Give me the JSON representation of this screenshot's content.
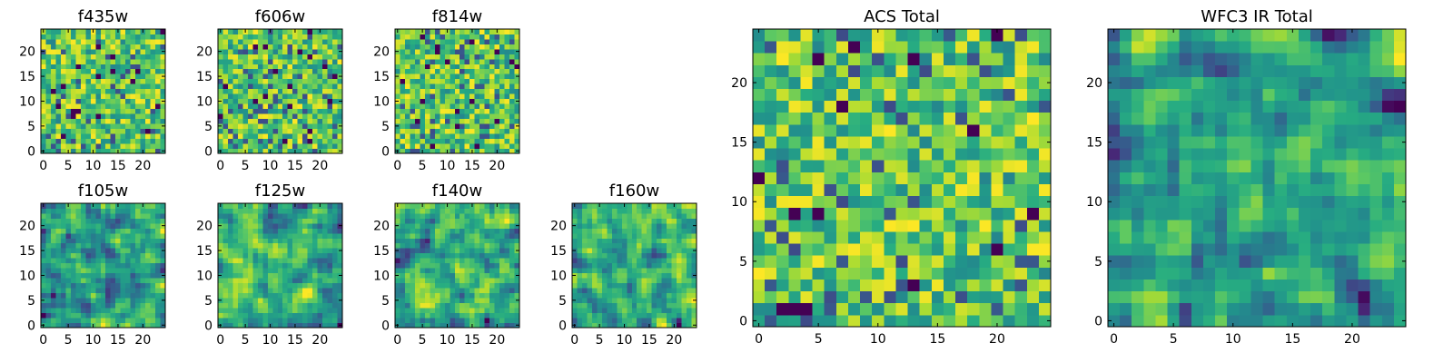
{
  "figure": {
    "description_colormap": "viridis",
    "colors": {
      "dark": "#440154",
      "mid": "#21918c",
      "bright": "#fde725"
    }
  },
  "chart_data": [
    {
      "type": "heatmap",
      "title": "f435w",
      "grid_size": 25,
      "xlim": [
        -0.5,
        24.5
      ],
      "ylim": [
        -0.5,
        24.5
      ],
      "x_ticks": [
        0,
        5,
        10,
        15,
        20
      ],
      "x_tick_labels": [
        "0",
        "5",
        "10",
        "15",
        "20"
      ],
      "y_ticks": [
        0,
        5,
        10,
        15,
        20
      ],
      "y_tick_labels": [
        "0",
        "5",
        "10",
        "15",
        "20"
      ],
      "pattern": "noise",
      "seed": 11
    },
    {
      "type": "heatmap",
      "title": "f606w",
      "grid_size": 25,
      "xlim": [
        -0.5,
        24.5
      ],
      "ylim": [
        -0.5,
        24.5
      ],
      "x_ticks": [
        0,
        5,
        10,
        15,
        20
      ],
      "x_tick_labels": [
        "0",
        "5",
        "10",
        "15",
        "20"
      ],
      "y_ticks": [
        0,
        5,
        10,
        15,
        20
      ],
      "y_tick_labels": [
        "0",
        "5",
        "10",
        "15",
        "20"
      ],
      "pattern": "noise",
      "seed": 23
    },
    {
      "type": "heatmap",
      "title": "f814w",
      "grid_size": 25,
      "xlim": [
        -0.5,
        24.5
      ],
      "ylim": [
        -0.5,
        24.5
      ],
      "x_ticks": [
        0,
        5,
        10,
        15,
        20
      ],
      "x_tick_labels": [
        "0",
        "5",
        "10",
        "15",
        "20"
      ],
      "y_ticks": [
        0,
        5,
        10,
        15,
        20
      ],
      "y_tick_labels": [
        "0",
        "5",
        "10",
        "15",
        "20"
      ],
      "pattern": "noise",
      "seed": 37
    },
    {
      "type": "heatmap",
      "title": "f105w",
      "grid_size": 25,
      "xlim": [
        -0.5,
        24.5
      ],
      "ylim": [
        -0.5,
        24.5
      ],
      "x_ticks": [
        0,
        5,
        10,
        15,
        20
      ],
      "x_tick_labels": [
        "0",
        "5",
        "10",
        "15",
        "20"
      ],
      "y_ticks": [
        0,
        5,
        10,
        15,
        20
      ],
      "y_tick_labels": [
        "0",
        "5",
        "10",
        "15",
        "20"
      ],
      "pattern": "smooth",
      "seed": 41
    },
    {
      "type": "heatmap",
      "title": "f125w",
      "grid_size": 25,
      "xlim": [
        -0.5,
        24.5
      ],
      "ylim": [
        -0.5,
        24.5
      ],
      "x_ticks": [
        0,
        5,
        10,
        15,
        20
      ],
      "x_tick_labels": [
        "0",
        "5",
        "10",
        "15",
        "20"
      ],
      "y_ticks": [
        0,
        5,
        10,
        15,
        20
      ],
      "y_tick_labels": [
        "0",
        "5",
        "10",
        "15",
        "20"
      ],
      "pattern": "smooth",
      "seed": 53
    },
    {
      "type": "heatmap",
      "title": "f140w",
      "grid_size": 25,
      "xlim": [
        -0.5,
        24.5
      ],
      "ylim": [
        -0.5,
        24.5
      ],
      "x_ticks": [
        0,
        5,
        10,
        15,
        20
      ],
      "x_tick_labels": [
        "0",
        "5",
        "10",
        "15",
        "20"
      ],
      "y_ticks": [
        0,
        5,
        10,
        15,
        20
      ],
      "y_tick_labels": [
        "0",
        "5",
        "10",
        "15",
        "20"
      ],
      "pattern": "smooth",
      "seed": 67
    },
    {
      "type": "heatmap",
      "title": "f160w",
      "grid_size": 25,
      "xlim": [
        -0.5,
        24.5
      ],
      "ylim": [
        -0.5,
        24.5
      ],
      "x_ticks": [
        0,
        5,
        10,
        15,
        20
      ],
      "x_tick_labels": [
        "0",
        "5",
        "10",
        "15",
        "20"
      ],
      "y_ticks": [
        0,
        5,
        10,
        15,
        20
      ],
      "y_tick_labels": [
        "0",
        "5",
        "10",
        "15",
        "20"
      ],
      "pattern": "smooth",
      "seed": 79
    },
    {
      "type": "heatmap",
      "title": "ACS Total",
      "grid_size": 25,
      "xlim": [
        -0.5,
        24.5
      ],
      "ylim": [
        -0.5,
        24.5
      ],
      "x_ticks": [
        0,
        5,
        10,
        15,
        20
      ],
      "x_tick_labels": [
        "0",
        "5",
        "10",
        "15",
        "20"
      ],
      "y_ticks": [
        0,
        5,
        10,
        15,
        20
      ],
      "y_tick_labels": [
        "0",
        "5",
        "10",
        "15",
        "20"
      ],
      "pattern": "noise",
      "seed": 97
    },
    {
      "type": "heatmap",
      "title": "WFC3 IR Total",
      "grid_size": 25,
      "xlim": [
        -0.5,
        24.5
      ],
      "ylim": [
        -0.5,
        24.5
      ],
      "x_ticks": [
        0,
        5,
        10,
        15,
        20
      ],
      "x_tick_labels": [
        "0",
        "5",
        "10",
        "15",
        "20"
      ],
      "y_ticks": [
        0,
        5,
        10,
        15,
        20
      ],
      "y_tick_labels": [
        "0",
        "5",
        "10",
        "15",
        "20"
      ],
      "pattern": "smooth",
      "seed": 113
    }
  ]
}
